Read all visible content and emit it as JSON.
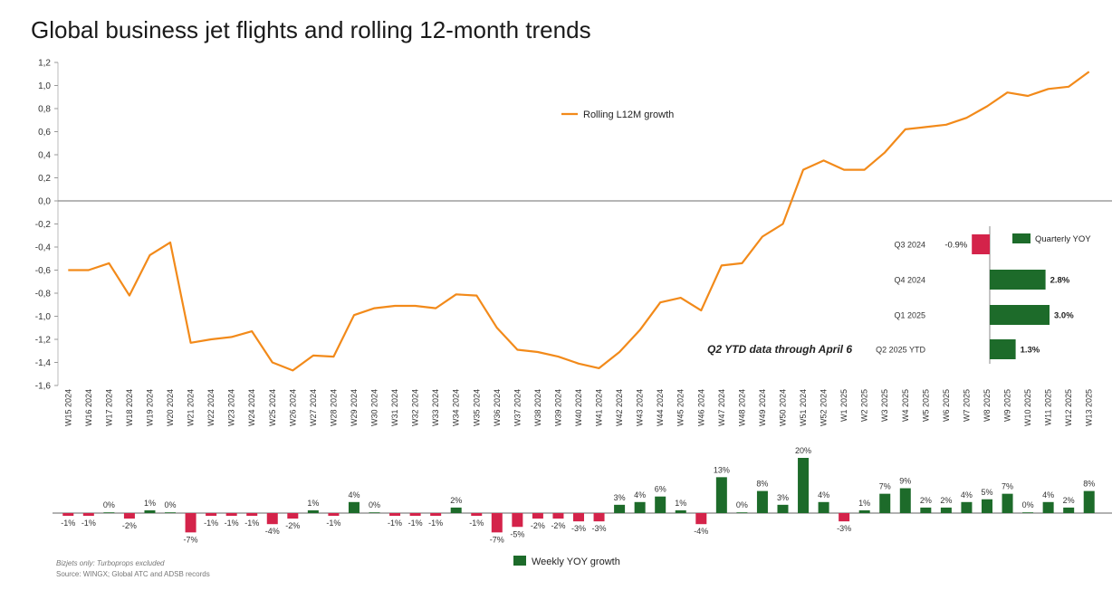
{
  "title": "Global business jet flights and rolling 12-month trends",
  "footnote": "Bizjets only: Turboprops excluded",
  "source": "Source: WINGX; Global ATC and ADSB records",
  "colors": {
    "line": "#f28a1a",
    "positive": "#1d6b2a",
    "negative": "#d4234a",
    "axis": "#444444"
  },
  "chart_data": [
    {
      "type": "line",
      "series": [
        {
          "name": "Rolling L12M growth",
          "values": [
            -0.6,
            -0.6,
            -0.54,
            -0.82,
            -0.47,
            -0.36,
            -1.23,
            -1.2,
            -1.18,
            -1.13,
            -1.4,
            -1.47,
            -1.34,
            -1.35,
            -0.99,
            -0.93,
            -0.91,
            -0.91,
            -0.93,
            -0.81,
            -0.82,
            -1.1,
            -1.29,
            -1.31,
            -1.35,
            -1.41,
            -1.45,
            -1.31,
            -1.12,
            -0.88,
            -0.84,
            -0.95,
            -0.56,
            -0.54,
            -0.31,
            -0.2,
            0.27,
            0.35,
            0.27,
            0.27,
            0.42,
            0.62,
            0.64,
            0.66,
            0.72,
            0.82,
            0.94,
            0.91,
            0.97,
            0.99,
            1.12
          ]
        }
      ],
      "categories": [
        "W15 2024",
        "W16 2024",
        "W17 2024",
        "W18 2024",
        "W19 2024",
        "W20 2024",
        "W21 2024",
        "W22 2024",
        "W23 2024",
        "W24 2024",
        "W25 2024",
        "W26 2024",
        "W27 2024",
        "W28 2024",
        "W29 2024",
        "W30 2024",
        "W31 2024",
        "W32 2024",
        "W33 2024",
        "W34 2024",
        "W35 2024",
        "W36 2024",
        "W37 2024",
        "W38 2024",
        "W39 2024",
        "W40 2024",
        "W41 2024",
        "W42 2024",
        "W43 2024",
        "W44 2024",
        "W45 2024",
        "W46 2024",
        "W47 2024",
        "W48 2024",
        "W49 2024",
        "W50 2024",
        "W51 2024",
        "W52 2024",
        "W1 2025",
        "W2 2025",
        "W3 2025",
        "W4 2025",
        "W5 2025",
        "W6 2025",
        "W7 2025",
        "W8 2025",
        "W9 2025",
        "W10 2025",
        "W11 2025",
        "W12 2025",
        "W13 2025"
      ],
      "yticks": [
        "1,2",
        "1,0",
        "0,8",
        "0,6",
        "0,4",
        "0,2",
        "0,0",
        "-0,2",
        "-0,4",
        "-0,6",
        "-0,8",
        "-1,0",
        "-1,2",
        "-1,4",
        "-1,6"
      ],
      "ylim": [
        -1.6,
        1.2
      ],
      "legend": "top-left"
    },
    {
      "type": "bar",
      "series": [
        {
          "name": "Weekly YOY growth",
          "values": [
            -1,
            -1,
            0,
            -2,
            1,
            0,
            -7,
            -1,
            -1,
            -1,
            -4,
            -2,
            1,
            -1,
            4,
            0,
            -1,
            -1,
            -1,
            2,
            -1,
            -7,
            -5,
            -2,
            -2,
            -3,
            -3,
            3,
            4,
            6,
            1,
            -4,
            13,
            0,
            8,
            3,
            20,
            4,
            -3,
            1,
            7,
            9,
            2,
            2,
            4,
            5,
            7,
            0,
            4,
            2,
            8
          ],
          "labels": [
            "-1%",
            "-1%",
            "0%",
            "-2%",
            "1%",
            "0%",
            "-7%",
            "-1%",
            "-1%",
            "-1%",
            "-4%",
            "-2%",
            "1%",
            "-1%",
            "4%",
            "0%",
            "-1%",
            "-1%",
            "-1%",
            "2%",
            "-1%",
            "-7%",
            "-5%",
            "-2%",
            "-2%",
            "-3%",
            "-3%",
            "3%",
            "4%",
            "6%",
            "1%",
            "-4%",
            "13%",
            "0%",
            "8%",
            "3%",
            "20%",
            "4%",
            "-3%",
            "1%",
            "7%",
            "9%",
            "2%",
            "2%",
            "4%",
            "5%",
            "7%",
            "0%",
            "4%",
            "2%",
            "8%"
          ]
        }
      ],
      "legend": "bottom-center"
    },
    {
      "type": "bar",
      "orientation": "horizontal",
      "categories": [
        "Q3 2024",
        "Q4 2024",
        "Q1 2025",
        "Q2 2025 YTD"
      ],
      "series": [
        {
          "name": "Quarterly YOY",
          "values": [
            -0.9,
            2.8,
            3.0,
            1.3
          ],
          "labels": [
            "-0.9%",
            "2.8%",
            "3.0%",
            "1.3%"
          ]
        }
      ],
      "annotation": "Q2 YTD data through April 6",
      "legend": "top-right"
    }
  ]
}
